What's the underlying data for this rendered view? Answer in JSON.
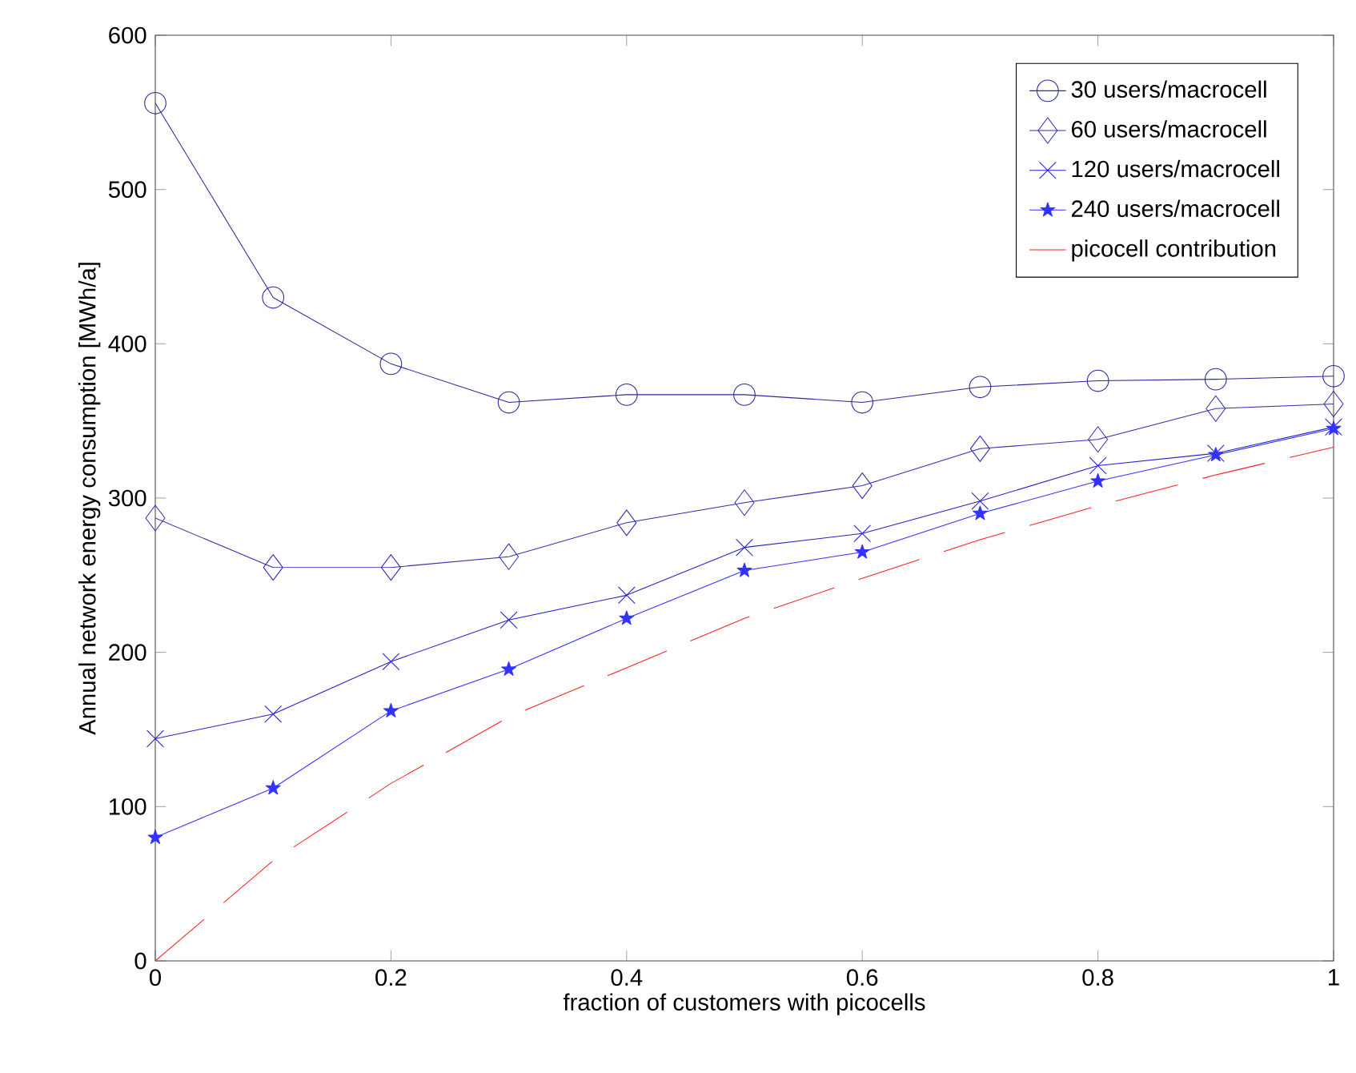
{
  "chart_data": {
    "type": "line",
    "xlabel": "fraction of customers with picocells",
    "ylabel": "Annual network energy consumption [MWh/a]",
    "x": [
      0,
      0.1,
      0.2,
      0.3,
      0.4,
      0.5,
      0.6,
      0.7,
      0.8,
      0.9,
      1
    ],
    "series": [
      {
        "name": "30 users/macrocell",
        "color": "#2a2a9a",
        "marker": "circle",
        "line_style": "solid",
        "values": [
          556,
          430,
          387,
          362,
          367,
          367,
          362,
          372,
          376,
          377,
          379
        ]
      },
      {
        "name": "60 users/macrocell",
        "color": "#3030b0",
        "marker": "diamond",
        "line_style": "solid",
        "values": [
          287,
          255,
          255,
          262,
          284,
          297,
          308,
          332,
          338,
          358,
          361
        ]
      },
      {
        "name": "120 users/macrocell",
        "color": "#2222cc",
        "marker": "cross",
        "line_style": "solid",
        "values": [
          144,
          160,
          194,
          221,
          237,
          268,
          277,
          298,
          321,
          329,
          346
        ]
      },
      {
        "name": "240 users/macrocell",
        "color": "#3333ff",
        "marker": "star",
        "line_style": "solid",
        "values": [
          80,
          112,
          162,
          189,
          222,
          253,
          265,
          290,
          311,
          328,
          345
        ]
      },
      {
        "name": "picocell contribution",
        "color": "#ff2222",
        "marker": "none",
        "line_style": "dashed",
        "values": [
          0,
          65,
          115,
          158,
          190,
          222,
          248,
          273,
          295,
          315,
          333
        ]
      }
    ],
    "xlim": [
      0,
      1
    ],
    "xticks": [
      0,
      0.2,
      0.4,
      0.6,
      0.8,
      1
    ],
    "ylim": [
      0,
      600
    ],
    "yticks": [
      0,
      100,
      200,
      300,
      400,
      500,
      600
    ],
    "grid": false,
    "legend": "top right"
  }
}
